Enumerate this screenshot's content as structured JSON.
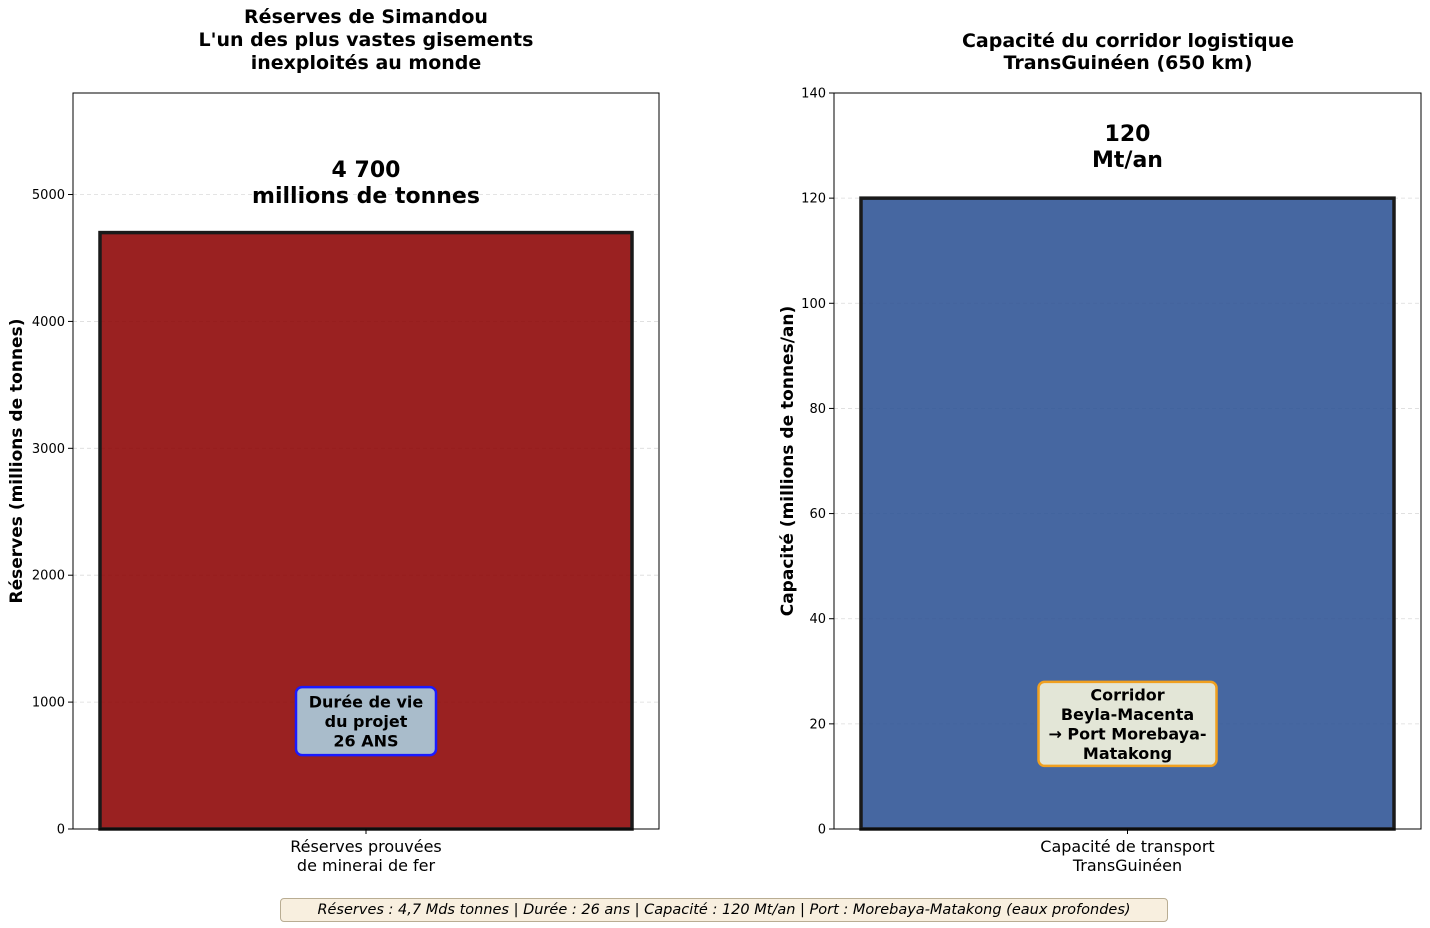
{
  "chart_data": [
    {
      "type": "bar",
      "title_lines": [
        "Réserves de Simandou",
        "L'un des plus vastes gisements",
        "inexploités au monde"
      ],
      "categories": [
        [
          "Réserves prouvées",
          "de minerai de fer"
        ]
      ],
      "values": [
        4700
      ],
      "value_label": [
        "4 700",
        "millions de tonnes"
      ],
      "ylabel": "Réserves (millions de tonnes)",
      "ylim": [
        0,
        5800
      ],
      "yticks": [
        0,
        1000,
        2000,
        3000,
        4000,
        5000
      ],
      "grid": true,
      "bar_color": "#8b0000",
      "annotation": {
        "lines": [
          "Durée de vie",
          "du projet",
          "26 ANS"
        ],
        "y": 850,
        "fill": "#a9bccb",
        "border": "#1a1aff"
      }
    },
    {
      "type": "bar",
      "title_lines": [
        "Capacité du corridor logistique",
        "TransGuinéen (650 km)"
      ],
      "categories": [
        [
          "Capacité de transport",
          "TransGuinéen"
        ]
      ],
      "values": [
        120
      ],
      "value_label": [
        "120",
        "Mt/an"
      ],
      "ylabel": "Capacité (millions de tonnes/an)",
      "ylim": [
        0,
        140
      ],
      "yticks": [
        0,
        20,
        40,
        60,
        80,
        100,
        120,
        140
      ],
      "grid": true,
      "bar_color": "#2b5093",
      "annotation": {
        "lines": [
          "Corridor",
          "Beyla-Macenta",
          "→ Port Morebaya-",
          "Matakong"
        ],
        "y": 20,
        "fill": "#e3e6d7",
        "border": "#f0a020"
      }
    }
  ],
  "footer": "Réserves : 4,7 Mds tonnes | Durée : 26 ans | Capacité : 120 Mt/an | Port : Morebaya-Matakong (eaux profondes)"
}
